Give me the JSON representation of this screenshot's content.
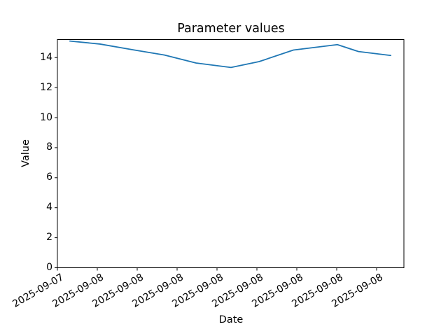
{
  "chart_data": {
    "type": "line",
    "title": "Parameter values",
    "xlabel": "Date",
    "ylabel": "Value",
    "x_tick_labels": [
      "2025-09-07",
      "2025-09-08",
      "2025-09-08",
      "2025-09-08",
      "2025-09-08",
      "2025-09-08",
      "2025-09-08",
      "2025-09-08",
      "2025-09-08"
    ],
    "y_ticks": [
      0,
      2,
      4,
      6,
      8,
      10,
      12,
      14
    ],
    "ylim": [
      0,
      15.2
    ],
    "grid": false,
    "legend": "none",
    "line_color": "#1f77b4",
    "axis_color": "#000000",
    "series": [
      {
        "points": [
          {
            "x_frac": 0.036,
            "value": 15.1
          },
          {
            "x_frac": 0.123,
            "value": 14.9
          },
          {
            "x_frac": 0.218,
            "value": 14.52
          },
          {
            "x_frac": 0.309,
            "value": 14.17
          },
          {
            "x_frac": 0.4,
            "value": 13.64
          },
          {
            "x_frac": 0.501,
            "value": 13.34
          },
          {
            "x_frac": 0.582,
            "value": 13.73
          },
          {
            "x_frac": 0.681,
            "value": 14.5
          },
          {
            "x_frac": 0.808,
            "value": 14.86
          },
          {
            "x_frac": 0.869,
            "value": 14.4
          },
          {
            "x_frac": 0.962,
            "value": 14.14
          }
        ]
      }
    ]
  }
}
